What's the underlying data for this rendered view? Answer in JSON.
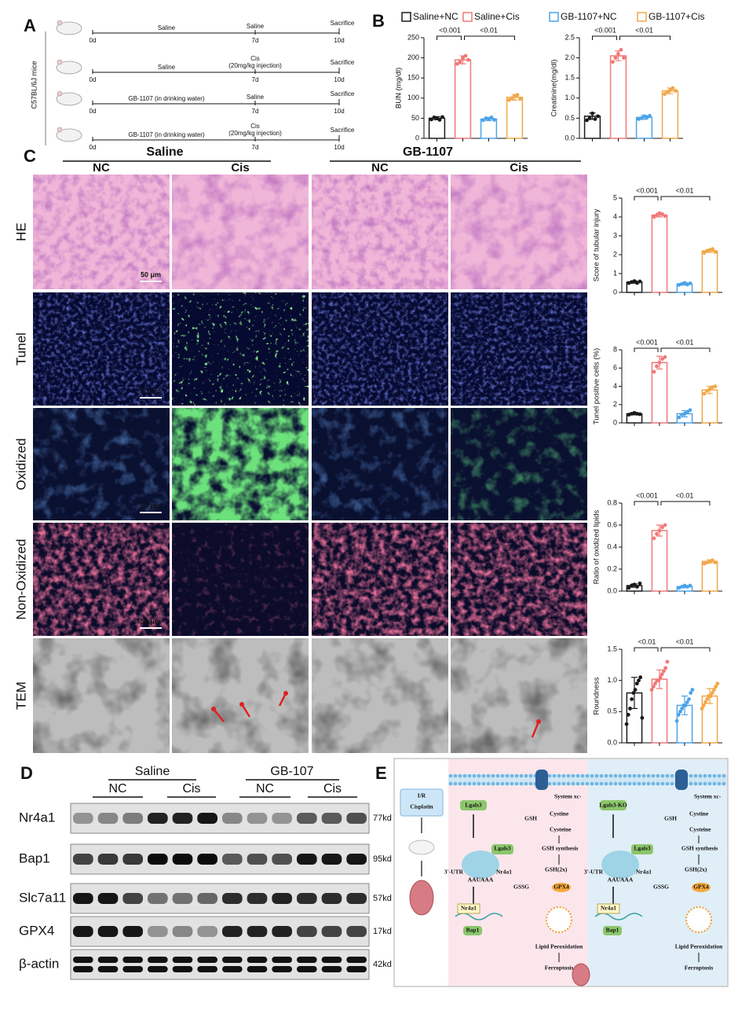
{
  "panel_a": {
    "label": "A",
    "side_label": "C57BL/6J mice",
    "timelines": [
      {
        "left_text": "Saline",
        "mid_text": [
          "Saline"
        ],
        "end_text": "Sacrifice",
        "start": "0d",
        "mid": "7d",
        "end": "10d"
      },
      {
        "left_text": "Saline",
        "mid_text": [
          "Cis",
          "(20mg/kg injection)"
        ],
        "end_text": "Sacrifice",
        "start": "0d",
        "mid": "7d",
        "end": "10d"
      },
      {
        "left_text": "GB-1107 (in drinking water)",
        "mid_text": [
          "Saline"
        ],
        "end_text": "Sacrifice",
        "start": "0d",
        "mid": "7d",
        "end": "10d"
      },
      {
        "left_text": "GB-1107 (in drinking water)",
        "mid_text": [
          "Cis",
          "(20mg/kg injection)"
        ],
        "end_text": "Sacrifice",
        "start": "0d",
        "mid": "7d",
        "end": "10d"
      }
    ]
  },
  "panel_b": {
    "label": "B",
    "groups": [
      {
        "name": "Saline+NC",
        "color": "#1a1a1a"
      },
      {
        "name": "Saline+Cis",
        "color": "#f07878"
      },
      {
        "name": "GB-1107+NC",
        "color": "#4da3e8"
      },
      {
        "name": "GB-1107+Cis",
        "color": "#f0a848"
      }
    ],
    "charts": [
      {
        "type": "bar",
        "ylabel": "BUN (mg/dl)",
        "ylim": [
          0,
          250
        ],
        "yticks": [
          0,
          50,
          100,
          150,
          200,
          250
        ],
        "values": [
          50,
          195,
          48,
          102
        ],
        "errors": [
          4,
          10,
          4,
          7
        ],
        "points": [
          [
            47,
            52,
            50,
            46,
            53
          ],
          [
            185,
            190,
            200,
            205,
            195
          ],
          [
            45,
            50,
            48,
            52,
            46
          ],
          [
            95,
            100,
            105,
            108,
            98
          ]
        ],
        "annotations": [
          "<0.001",
          "<0.01"
        ]
      },
      {
        "type": "bar",
        "ylabel": "Creatinine(mg/dl)",
        "ylim": [
          0,
          2.5
        ],
        "yticks": [
          {
            "value": 0,
            "label": "0.0"
          },
          0.5,
          {
            "value": 1,
            "label": "1.0"
          },
          1.5,
          {
            "value": 2,
            "label": "2.0"
          },
          2.5
        ],
        "values": [
          0.55,
          2.05,
          0.52,
          1.18
        ],
        "errors": [
          0.08,
          0.12,
          0.05,
          0.07
        ],
        "points": [
          [
            0.45,
            0.5,
            0.62,
            0.48,
            0.55
          ],
          [
            1.9,
            2.0,
            2.1,
            2.2,
            2.0
          ],
          [
            0.48,
            0.5,
            0.55,
            0.52,
            0.56
          ],
          [
            1.1,
            1.15,
            1.2,
            1.25,
            1.18
          ]
        ],
        "annotations": [
          "<0.001",
          "<0.01"
        ]
      }
    ]
  },
  "panel_c": {
    "label": "C",
    "groups": [
      {
        "title": "Saline",
        "columns": [
          "NC",
          "Cis"
        ]
      },
      {
        "title": "GB-1107",
        "columns": [
          "NC",
          "Cis"
        ]
      }
    ],
    "rows": [
      "HE",
      "Tunel",
      "Oxidized",
      "Non-Oxidized",
      "TEM"
    ],
    "scale_bar": "50 μm",
    "charts": [
      {
        "type": "bar",
        "ylabel": "Score of tubular injury",
        "ylim": [
          0,
          5
        ],
        "yticks": [
          0,
          1,
          2,
          3,
          4,
          5
        ],
        "values": [
          0.55,
          4.1,
          0.45,
          2.2
        ],
        "errors": [
          0.06,
          0.1,
          0.06,
          0.08
        ],
        "points": [
          [
            0.5,
            0.55,
            0.6,
            0.5,
            0.58
          ],
          [
            4.0,
            4.1,
            4.2,
            4.15,
            4.05
          ],
          [
            0.4,
            0.45,
            0.5,
            0.42,
            0.48
          ],
          [
            2.1,
            2.2,
            2.25,
            2.3,
            2.15
          ]
        ],
        "annotations": [
          "<0.001",
          "<0.01"
        ]
      },
      {
        "type": "bar",
        "ylabel": "Tunel positive cells (%)",
        "ylim": [
          0,
          8
        ],
        "yticks": [
          0,
          2,
          4,
          6,
          8
        ],
        "values": [
          1.0,
          6.6,
          1.0,
          3.6
        ],
        "errors": [
          0.12,
          0.7,
          0.35,
          0.4
        ],
        "points": [
          [
            0.9,
            1.0,
            1.1,
            1.0,
            0.95
          ],
          [
            5.6,
            6.2,
            6.6,
            7.0,
            7.2
          ],
          [
            0.6,
            0.9,
            1.0,
            1.2,
            1.4
          ],
          [
            3.2,
            3.5,
            3.7,
            3.9,
            4.0
          ]
        ],
        "annotations": [
          "<0.001",
          "<0.01"
        ]
      },
      {
        "type": "bar",
        "ylabel": "Ratio of oxidized lipids",
        "ylim": [
          0,
          0.8
        ],
        "yticks": [
          {
            "value": 0,
            "label": "0.0"
          },
          0.2,
          0.4,
          0.6,
          0.8
        ],
        "values": [
          0.05,
          0.55,
          0.04,
          0.27
        ],
        "errors": [
          0.015,
          0.05,
          0.01,
          0.015
        ],
        "points": [
          [
            0.03,
            0.05,
            0.06,
            0.04,
            0.07
          ],
          [
            0.48,
            0.52,
            0.55,
            0.58,
            0.6
          ],
          [
            0.03,
            0.04,
            0.05,
            0.04,
            0.05
          ],
          [
            0.25,
            0.26,
            0.27,
            0.28,
            0.26
          ]
        ],
        "annotations": [
          "<0.001",
          "<0.01"
        ]
      },
      {
        "type": "bar",
        "ylabel": "Roundness",
        "ylim": [
          0,
          1.5
        ],
        "yticks": [
          {
            "value": 0,
            "label": "0.0"
          },
          0.5,
          {
            "value": 1,
            "label": "1.0"
          },
          1.5
        ],
        "values": [
          0.8,
          1.02,
          0.6,
          0.75
        ],
        "errors": [
          0.25,
          0.15,
          0.15,
          0.12
        ],
        "points": [
          [
            0.3,
            0.45,
            0.55,
            0.7,
            0.8,
            0.85,
            0.95,
            1.0,
            1.05,
            0.4
          ],
          [
            0.85,
            0.9,
            0.95,
            1.0,
            1.0,
            1.05,
            1.1,
            1.15,
            1.2,
            1.3
          ],
          [
            0.35,
            0.45,
            0.5,
            0.55,
            0.6,
            0.6,
            0.65,
            0.7,
            0.8,
            0.85
          ],
          [
            0.55,
            0.6,
            0.65,
            0.7,
            0.75,
            0.75,
            0.8,
            0.85,
            0.9,
            0.95
          ]
        ],
        "annotations": [
          "<0.01",
          "<0.01"
        ]
      }
    ]
  },
  "panel_d": {
    "label": "D",
    "groups": [
      {
        "title": "Saline",
        "columns": [
          "NC",
          "Cis"
        ]
      },
      {
        "title": "GB-107",
        "columns": [
          "NC",
          "Cis"
        ]
      }
    ],
    "blots": [
      {
        "name": "Nr4a1",
        "size": "77kd"
      },
      {
        "name": "Bap1",
        "size": "95kd"
      },
      {
        "name": "Slc7a11",
        "size": "57kd"
      },
      {
        "name": "GPX4",
        "size": "17kd"
      },
      {
        "name": "β-actin",
        "size": "42kd"
      }
    ]
  },
  "panel_e": {
    "label": "E",
    "trigger": [
      "I/R",
      "Cisplatin"
    ],
    "sides": [
      {
        "gene": "Lgals3",
        "transporter": "System xc-",
        "gsh": "GSH",
        "cystine": "Cystine",
        "cysteine": "Cysteine",
        "synthesis": "GSH synthesis",
        "gsh2": "GSH(2x)",
        "gssg": "GSSG",
        "gpx4": "GPX4",
        "protein": "Lgals3",
        "utr": "3'-UTR",
        "motif": "AAUAAA",
        "mrna": "Nr4a1",
        "target1": "Nr4a1",
        "target2": "Bap1",
        "lipid": "Lipid Peroxidation",
        "outcome": "Ferroptosis"
      },
      {
        "gene": "Lgals3-KO",
        "transporter": "System xc-",
        "gsh": "GSH",
        "cystine": "Cystine",
        "cysteine": "Cysteine",
        "synthesis": "GSH synthesis",
        "gsh2": "GSH(2x)",
        "gssg": "GSSG",
        "gpx4": "GPX4",
        "protein": "Lgals3",
        "utr": "3'-UTR",
        "motif": "AAUAAA",
        "mrna": "Nr4a1",
        "target1": "Nr4a1",
        "target2": "Bap1",
        "lipid": "Lipid Peroxidation",
        "outcome": "Ferroptosis"
      }
    ]
  }
}
